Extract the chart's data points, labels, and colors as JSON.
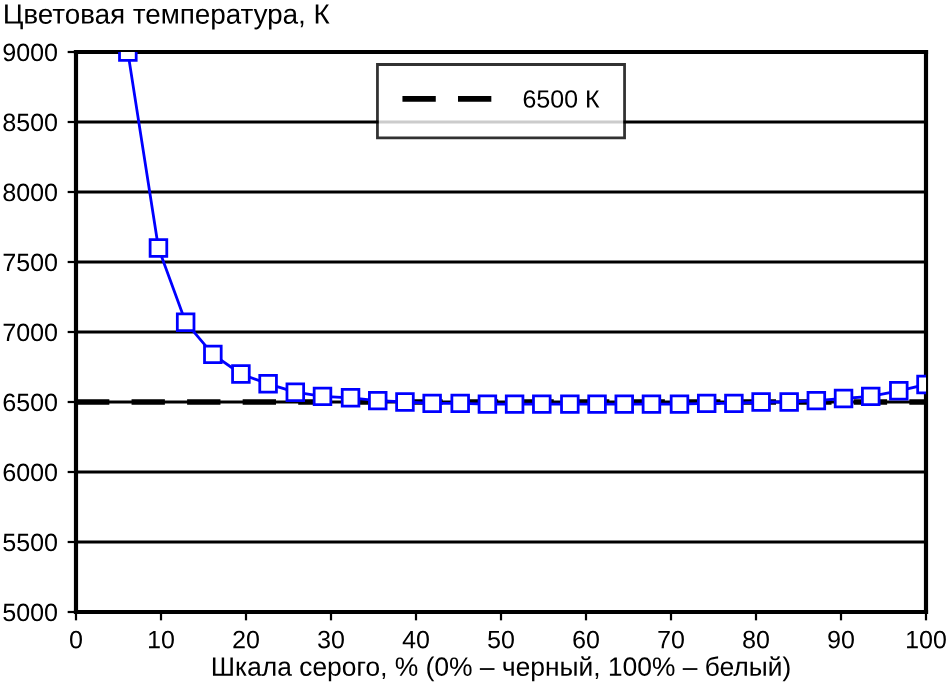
{
  "chart_data": {
    "type": "line",
    "ylabel": "Цветовая температура, К",
    "xlabel": "Шкала серого, % (0% – черный, 100% – белый)",
    "series": [
      {
        "color": "#0000ff",
        "x": [
          6.1,
          9.7,
          12.9,
          16.1,
          19.4,
          22.6,
          25.8,
          29.0,
          32.3,
          35.5,
          38.7,
          41.9,
          45.2,
          48.4,
          51.6,
          54.8,
          58.1,
          61.3,
          64.5,
          67.7,
          71.0,
          74.2,
          77.4,
          80.6,
          83.9,
          87.1,
          90.3,
          93.5,
          96.8,
          100
        ],
        "values": [
          9000,
          7600,
          7070,
          6840,
          6700,
          6630,
          6570,
          6540,
          6530,
          6510,
          6500,
          6490,
          6490,
          6485,
          6485,
          6485,
          6485,
          6485,
          6485,
          6485,
          6485,
          6490,
          6490,
          6500,
          6500,
          6510,
          6525,
          6540,
          6580,
          6625
        ]
      }
    ],
    "ref_lines": [
      {
        "axis": "y",
        "value": 6500,
        "label": "6500 К",
        "color": "#000000",
        "line_style": "dashed"
      }
    ],
    "xlim": [
      0,
      100
    ],
    "xticks": [
      0,
      10,
      20,
      30,
      40,
      50,
      60,
      70,
      80,
      90,
      100
    ],
    "ylim": [
      5000,
      9000
    ],
    "yticks": [
      5000,
      5500,
      6000,
      6500,
      7000,
      7500,
      8000,
      8500,
      9000
    ],
    "grid": "y",
    "legend": "top",
    "marker": "square",
    "line_style": "solid"
  }
}
